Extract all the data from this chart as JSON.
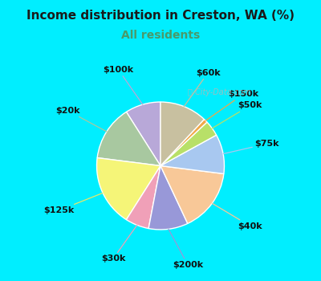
{
  "title": "Income distribution in Creston, WA (%)",
  "subtitle": "All residents",
  "title_color": "#1a1a1a",
  "subtitle_color": "#4a9a6a",
  "background_color": "#00eeff",
  "plot_bg_top": "#d8f0e8",
  "plot_bg_bottom": "#f0faf8",
  "watermark": "ⓘ City-Data.com",
  "labels": [
    "$100k",
    "$20k",
    "$125k",
    "$30k",
    "$200k",
    "$40k",
    "$75k",
    "$50k",
    "$150k",
    "$60k"
  ],
  "values": [
    9,
    14,
    18,
    6,
    10,
    16,
    10,
    4,
    1,
    12
  ],
  "colors": [
    "#b8a8d8",
    "#a8c8a0",
    "#f5f578",
    "#f0a0b8",
    "#9898d8",
    "#f8c898",
    "#a8c8f0",
    "#b8e068",
    "#f0a848",
    "#c8c0a0"
  ],
  "startangle": 90,
  "label_fontsize": 8,
  "line_colors": [
    "#b8a8d8",
    "#a8c8a0",
    "#e8e868",
    "#f0a0b8",
    "#9898d8",
    "#f8c898",
    "#a8c8f0",
    "#b8e068",
    "#f0a848",
    "#c8c0a0"
  ],
  "figsize": [
    4.0,
    3.5
  ],
  "dpi": 100
}
